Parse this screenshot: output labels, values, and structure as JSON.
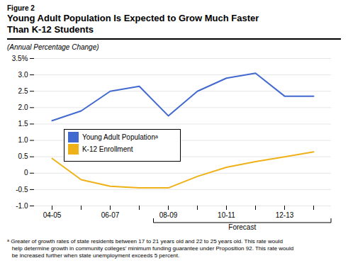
{
  "chart_data": {
    "type": "line",
    "figure_label": "Figure 2",
    "title": "Young Adult Population Is Expected to Grow Much Faster\nThan K-12 Students",
    "subtitle": "(Annual Percentage Change)",
    "categories": [
      "04-05",
      null,
      "06-07",
      null,
      "08-09",
      null,
      "10-11",
      null,
      "12-13",
      null
    ],
    "series": [
      {
        "name": "Young Adult Populationᵃ",
        "values": [
          1.6,
          1.9,
          2.5,
          2.65,
          1.75,
          2.5,
          2.9,
          3.05,
          2.35,
          2.35
        ]
      },
      {
        "name": "K-12 Enrollment",
        "values": [
          0.45,
          -0.2,
          -0.4,
          -0.45,
          -0.45,
          -0.1,
          0.18,
          0.35,
          0.5,
          0.65
        ]
      }
    ],
    "ylim": [
      -1.0,
      3.5
    ],
    "yticks": [
      {
        "value": -1.0,
        "label": "-1.0"
      },
      -0.5,
      0,
      0.5,
      {
        "value": 1.0,
        "label": "1.0"
      },
      1.5,
      {
        "value": 2.0,
        "label": "2.0"
      },
      2.5,
      {
        "value": 3.0,
        "label": "3.0"
      },
      {
        "value": 3.5,
        "label": "3.5%"
      }
    ],
    "grid": true,
    "legend": "lower left",
    "annotations": [
      {
        "text": "Forecast",
        "x": 3.5
      }
    ],
    "footnotes": [
      "ᵃ Greater of growth rates of state residents between 17 to 21 years old and 22 to 25 years old. This rate would",
      "   help determine growth in community colleges’ minimum funding guarantee under Proposition 92. This rate would",
      "   be increased further when state unemployment exceeds 5 percent."
    ]
  }
}
